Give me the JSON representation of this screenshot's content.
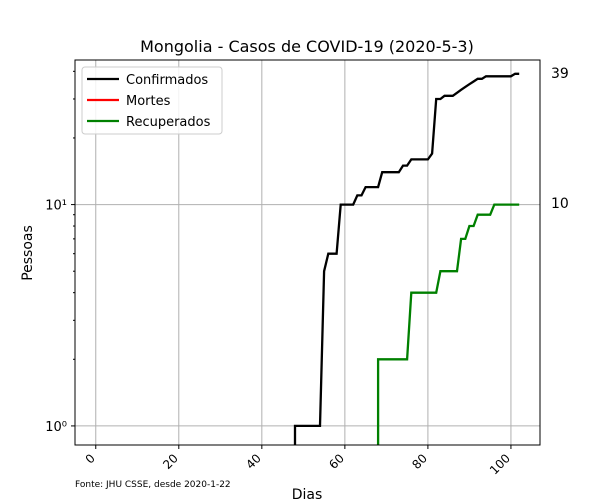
{
  "chart_data": {
    "type": "line",
    "title": "Mongolia - Casos de COVID-19 (2020-5-3)",
    "xlabel": "Dias",
    "ylabel": "Pessoas",
    "yscale": "log",
    "xlim": [
      -5,
      107
    ],
    "ylim": [
      0.82,
      45
    ],
    "xticks": [
      0,
      20,
      40,
      60,
      80,
      100
    ],
    "xtick_labels": [
      "0",
      "20",
      "40",
      "60",
      "80",
      "100"
    ],
    "yticks": [
      1,
      10
    ],
    "ytick_labels": [
      "10⁰",
      "10¹"
    ],
    "grid": true,
    "legend_position": "top-left",
    "footnote": "Fonte: JHU CSSE, desde 2020-1-22",
    "end_labels": [
      "39",
      "10"
    ],
    "series": [
      {
        "name": "Confirmados",
        "color": "#000000",
        "points": [
          [
            48,
            0.7
          ],
          [
            48,
            1
          ],
          [
            54,
            1
          ],
          [
            55,
            5
          ],
          [
            56,
            6
          ],
          [
            58,
            6
          ],
          [
            59,
            10
          ],
          [
            62,
            10
          ],
          [
            63,
            11
          ],
          [
            64,
            11
          ],
          [
            65,
            12
          ],
          [
            68,
            12
          ],
          [
            69,
            14
          ],
          [
            73,
            14
          ],
          [
            74,
            15
          ],
          [
            75,
            15
          ],
          [
            76,
            16
          ],
          [
            80,
            16
          ],
          [
            81,
            17
          ],
          [
            82,
            30
          ],
          [
            83,
            30
          ],
          [
            84,
            31
          ],
          [
            86,
            31
          ],
          [
            87,
            32
          ],
          [
            88,
            33
          ],
          [
            89,
            34
          ],
          [
            90,
            35
          ],
          [
            91,
            36
          ],
          [
            92,
            37
          ],
          [
            93,
            37
          ],
          [
            94,
            38
          ],
          [
            99,
            38
          ],
          [
            100,
            38
          ],
          [
            101,
            39
          ],
          [
            102,
            39
          ]
        ]
      },
      {
        "name": "Mortes",
        "color": "#ff0000",
        "points": []
      },
      {
        "name": "Recuperados",
        "color": "#008000",
        "points": [
          [
            68,
            0.7
          ],
          [
            68,
            2
          ],
          [
            75,
            2
          ],
          [
            76,
            4
          ],
          [
            82,
            4
          ],
          [
            83,
            5
          ],
          [
            87,
            5
          ],
          [
            88,
            7
          ],
          [
            89,
            7
          ],
          [
            90,
            8
          ],
          [
            91,
            8
          ],
          [
            92,
            9
          ],
          [
            95,
            9
          ],
          [
            96,
            10
          ],
          [
            102,
            10
          ]
        ]
      }
    ]
  }
}
